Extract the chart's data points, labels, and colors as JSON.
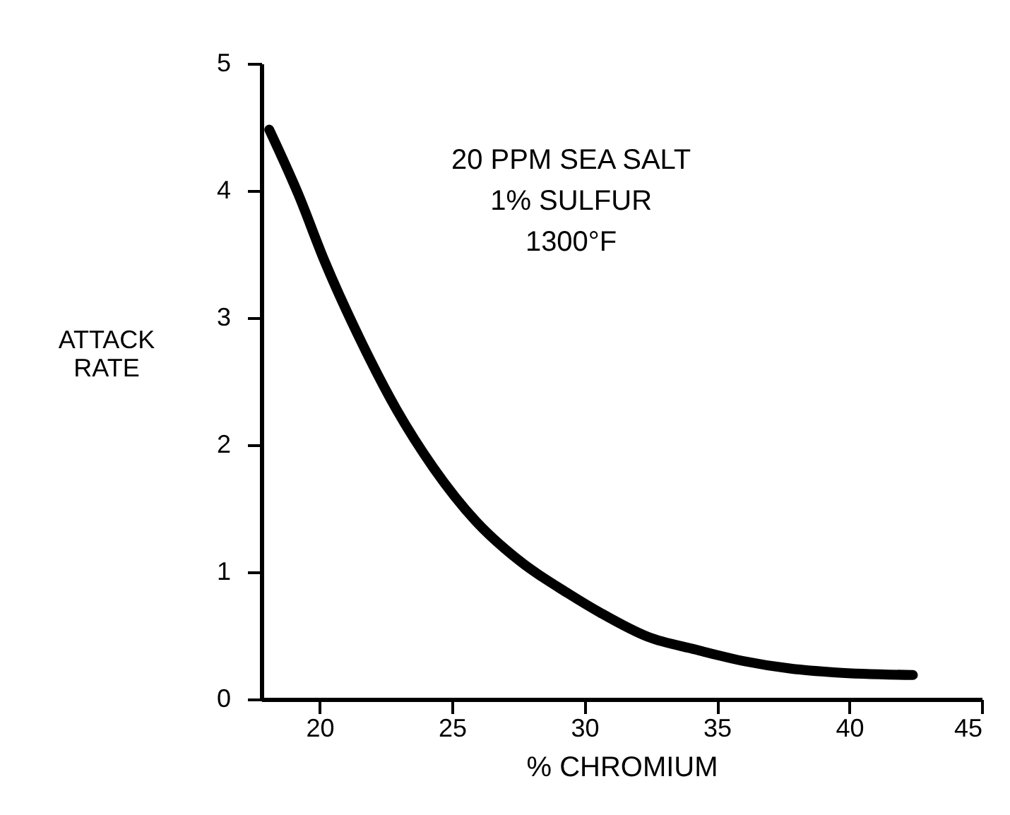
{
  "chart_data": {
    "type": "line",
    "xlabel": "% CHROMIUM",
    "ylabel": "ATTACK\nRATE",
    "annotations": [
      "20 PPM SEA SALT\n1% SULFUR\n1300°F"
    ],
    "series": [
      {
        "color": "#000000",
        "x": [
          18.1,
          19.2,
          20.2,
          21.6,
          22.9,
          24.3,
          25.9,
          27.6,
          29.4,
          30.6,
          32.4,
          34.2,
          36.0,
          37.8,
          39.5,
          42.4
        ],
        "values": [
          4.48,
          3.97,
          3.44,
          2.8,
          2.28,
          1.82,
          1.4,
          1.08,
          0.83,
          0.68,
          0.49,
          0.39,
          0.3,
          0.24,
          0.21,
          0.19
        ]
      }
    ],
    "xlim": [
      17.8,
      45
    ],
    "xticks": [
      20,
      25,
      30,
      35,
      40,
      45
    ],
    "ylim": [
      0,
      5
    ],
    "yticks": [
      0,
      1,
      2,
      3,
      4,
      5
    ],
    "grid": false,
    "marker": "none",
    "line_style": "solid"
  }
}
